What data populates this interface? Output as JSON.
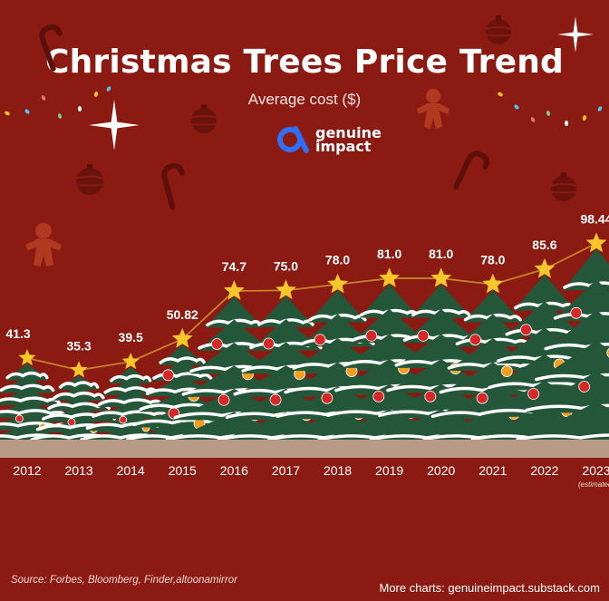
{
  "header": {
    "title": "Christmas Trees Price Trend",
    "subtitle": "Average cost ($)",
    "brand_line1": "genuine",
    "brand_line2": "impact"
  },
  "footer": {
    "source": "Source: Forbes, Bloomberg, Finder,altoonamirror",
    "more_charts": "More charts: genuineimpact.substack.com"
  },
  "colors": {
    "background": "#8b1a12",
    "trend_line": "#c8832a",
    "star": "#f6c62b",
    "tree": "#24573a",
    "snow": "#ffffff",
    "ground": "#b89a86",
    "brand_blue": "#2f6ef5"
  },
  "icons": [
    "candy-cane-icon",
    "ornament-icon",
    "sparkle-icon",
    "gingerbread-icon",
    "string-lights-icon",
    "star-icon",
    "christmas-tree-icon"
  ],
  "chart_data": {
    "type": "line",
    "title": "Christmas Trees Price Trend",
    "subtitle": "Average cost ($)",
    "x": [
      "2012",
      "2013",
      "2014",
      "2015",
      "2016",
      "2017",
      "2018",
      "2019",
      "2020",
      "2021",
      "2022",
      "2023"
    ],
    "value_labels": [
      "41.3",
      "35.3",
      "39.5",
      "50.82",
      "74.7",
      "75.0",
      "78.0",
      "81.0",
      "81.0",
      "78.0",
      "85.6",
      "98.44"
    ],
    "values": [
      41.3,
      35.3,
      39.5,
      50.82,
      74.7,
      75.0,
      78.0,
      81.0,
      81.0,
      78.0,
      85.6,
      98.44
    ],
    "annotations": [
      {
        "x": "2023",
        "text": "(estimated)"
      }
    ],
    "ylim": [
      0,
      100
    ],
    "grid": false,
    "legend": "none"
  }
}
